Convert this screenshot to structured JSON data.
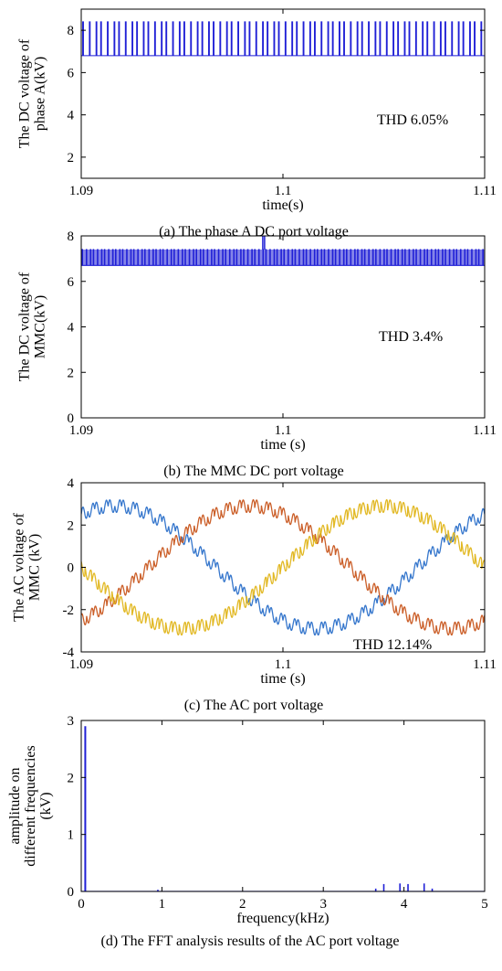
{
  "chart_data": [
    {
      "type": "line",
      "caption": "(a) The phase A DC port voltage",
      "xlabel": "time(s)",
      "ylabel_lines": [
        "The DC  voltage of",
        "phase A(kV)"
      ],
      "xlim": [
        1.09,
        1.11
      ],
      "ylim": [
        1,
        9
      ],
      "xticks": [
        1.09,
        1.1,
        1.11
      ],
      "xtick_labels": [
        "1.09",
        "1.1",
        "1.11"
      ],
      "yticks": [
        2,
        4,
        6,
        8
      ],
      "ytick_labels": [
        "2",
        "4",
        "6",
        "8"
      ],
      "annotation": "THD 6.05%",
      "series": [
        {
          "color": "#1f1fd6",
          "pattern": "square_pulse",
          "low": 6.8,
          "high": 8.4,
          "pulses": 68
        }
      ]
    },
    {
      "type": "line",
      "caption": "(b) The MMC DC port voltage",
      "xlabel": "time (s)",
      "ylabel_lines": [
        "The DC voltage of",
        "MMC(kV)"
      ],
      "xlim": [
        1.09,
        1.11
      ],
      "ylim": [
        0,
        8
      ],
      "xticks": [
        1.09,
        1.1,
        1.11
      ],
      "xtick_labels": [
        "1.09",
        "1.1",
        "1.11"
      ],
      "yticks": [
        0,
        2,
        4,
        6,
        8
      ],
      "ytick_labels": [
        "0",
        "2",
        "4",
        "6",
        "8"
      ],
      "annotation": "THD 3.4%",
      "series": [
        {
          "color": "#1f1fd6",
          "pattern": "square_pulse",
          "low": 6.7,
          "high": 7.4,
          "pulses": 110,
          "spike_x": 1.099,
          "spike_y": 8.0
        }
      ]
    },
    {
      "type": "line",
      "caption": "(c) The AC port voltage",
      "xlabel": "time (s)",
      "ylabel_lines": [
        "The AC voltage of",
        "MMC (kV)"
      ],
      "xlim": [
        1.09,
        1.11
      ],
      "ylim": [
        -4,
        4
      ],
      "xticks": [
        1.09,
        1.1,
        1.11
      ],
      "xtick_labels": [
        "1.09",
        "1.1",
        "1.11"
      ],
      "yticks": [
        -4,
        -2,
        0,
        2,
        4
      ],
      "ytick_labels": [
        "-4",
        "-2",
        "0",
        "2",
        "4"
      ],
      "annotation": "THD 12.14%",
      "series": [
        {
          "color": "#2a6fc9",
          "amplitude": 2.9,
          "frequency_hz": 50,
          "phase_deg": 240,
          "ripple": 0.3
        },
        {
          "color": "#c8561e",
          "amplitude": 2.9,
          "frequency_hz": 50,
          "phase_deg": 120,
          "ripple": 0.3
        },
        {
          "color": "#e0b51a",
          "amplitude": 2.9,
          "frequency_hz": 50,
          "phase_deg": 0,
          "ripple": 0.3
        }
      ]
    },
    {
      "type": "bar",
      "caption": "(d) The FFT analysis results of the AC port voltage",
      "xlabel": "frequency(kHz)",
      "ylabel_lines": [
        "amplitude on",
        "different frequencies",
        "(kV)"
      ],
      "xlim": [
        0,
        5
      ],
      "ylim": [
        0,
        3
      ],
      "xticks": [
        0,
        1,
        2,
        3,
        4,
        5
      ],
      "xtick_labels": [
        "0",
        "1",
        "2",
        "3",
        "4",
        "5"
      ],
      "yticks": [
        0,
        1,
        2,
        3
      ],
      "ytick_labels": [
        "0",
        "1",
        "2",
        "3"
      ],
      "x": [
        0.05,
        0.95,
        3.65,
        3.75,
        3.95,
        4.05,
        4.25,
        4.35
      ],
      "values": [
        2.9,
        0.03,
        0.05,
        0.13,
        0.14,
        0.13,
        0.14,
        0.05
      ],
      "color": "#1f1fd6"
    }
  ]
}
